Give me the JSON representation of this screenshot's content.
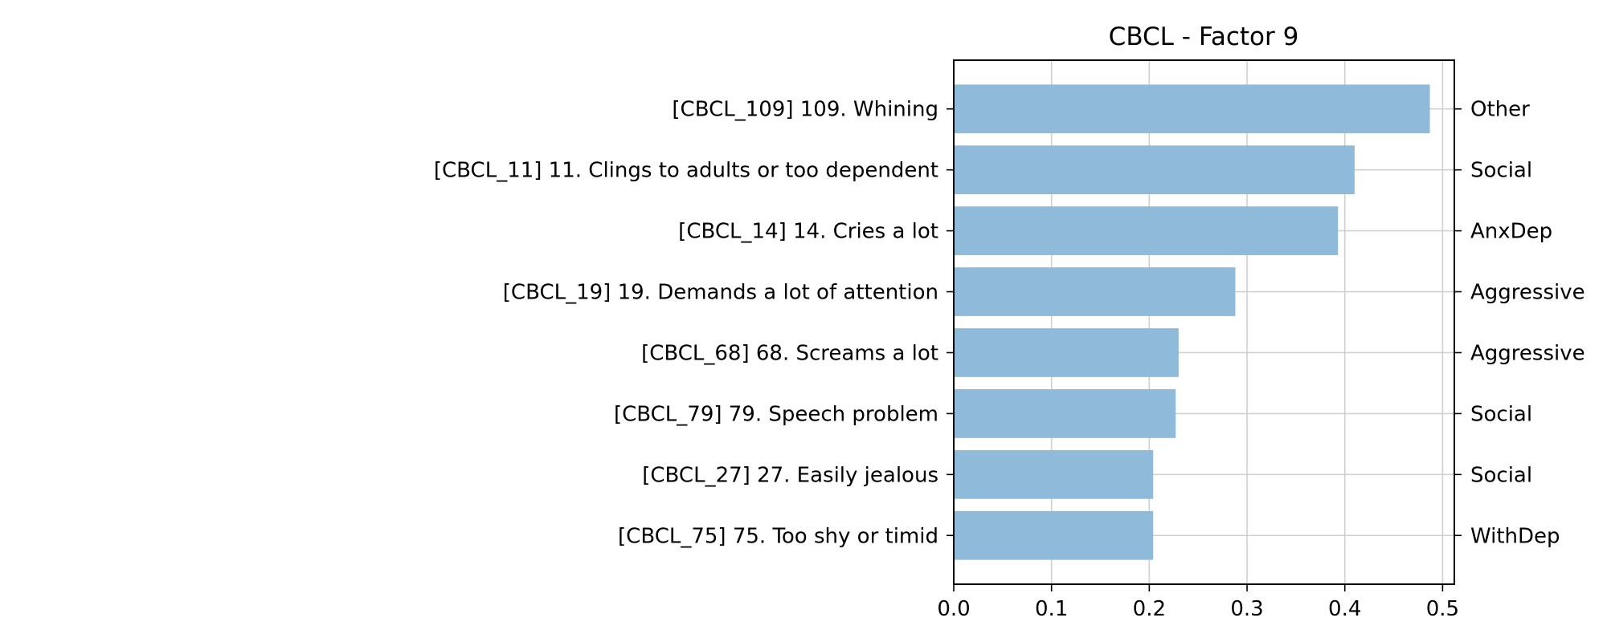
{
  "chart_data": {
    "type": "bar",
    "orientation": "horizontal",
    "title": "CBCL - Factor 9",
    "xlabel": "",
    "ylabel": "",
    "xlim": [
      0,
      0.512
    ],
    "x_ticks": [
      0.0,
      0.1,
      0.2,
      0.3,
      0.4,
      0.5
    ],
    "x_tick_labels": [
      "0.0",
      "0.1",
      "0.2",
      "0.3",
      "0.4",
      "0.5"
    ],
    "grid": true,
    "bar_color": "#8fbad9",
    "categories": [
      "[CBCL_109] 109. Whining",
      "[CBCL_11] 11. Clings to adults or too dependent",
      "[CBCL_14] 14. Cries a lot",
      "[CBCL_19] 19. Demands a lot of attention",
      "[CBCL_68] 68. Screams a lot",
      "[CBCL_79] 79. Speech problem",
      "[CBCL_27] 27. Easily jealous",
      "[CBCL_75] 75. Too shy or timid"
    ],
    "values": [
      0.487,
      0.41,
      0.393,
      0.288,
      0.23,
      0.227,
      0.204,
      0.204
    ],
    "right_labels": [
      "Other",
      "Social",
      "AnxDep",
      "Aggressive",
      "Aggressive",
      "Social",
      "Social",
      "WithDep"
    ]
  }
}
